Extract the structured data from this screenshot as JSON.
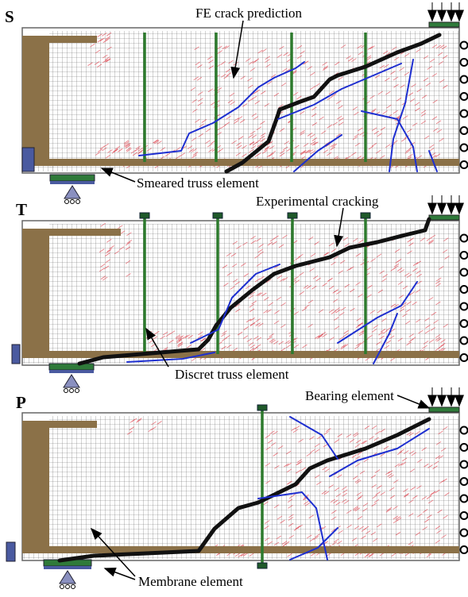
{
  "panels": [
    {
      "label": "S"
    },
    {
      "label": "T"
    },
    {
      "label": "P"
    }
  ],
  "annotations": [
    {
      "text": "FE crack prediction"
    },
    {
      "text": "Smeared truss element"
    },
    {
      "text": "Experimental cracking"
    },
    {
      "text": "Discret truss element"
    },
    {
      "text": "Bearing element"
    },
    {
      "text": "Membrane element"
    }
  ]
}
